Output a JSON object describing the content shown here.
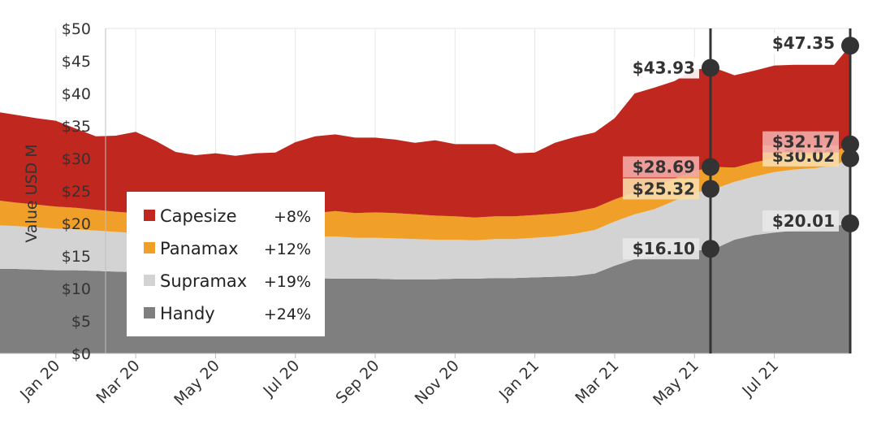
{
  "chart_data": {
    "type": "area",
    "stacked": true,
    "ylabel": "Value USD M",
    "ylim": [
      0,
      50
    ],
    "y_ticks": [
      "$0",
      "$5",
      "$10",
      "$15",
      "$20",
      "$25",
      "$30",
      "$35",
      "$40",
      "$45",
      "$50"
    ],
    "x_ticks": [
      {
        "label": "Jan 20",
        "t": 1
      },
      {
        "label": "Mar 20",
        "t": 3
      },
      {
        "label": "May 20",
        "t": 5
      },
      {
        "label": "Jul 20",
        "t": 7
      },
      {
        "label": "Sep 20",
        "t": 9
      },
      {
        "label": "Nov 20",
        "t": 11
      },
      {
        "label": "Jan 21",
        "t": 13
      },
      {
        "label": "Mar 21",
        "t": 15
      },
      {
        "label": "May 21",
        "t": 17
      },
      {
        "label": "Jul 21",
        "t": 19
      }
    ],
    "x_range": [
      -0.4,
      20.9
    ],
    "grid": "vertical",
    "x": [
      -0.4,
      0,
      0.5,
      1,
      1.5,
      2,
      2.5,
      3,
      3.5,
      4,
      4.5,
      5,
      5.5,
      6,
      6.5,
      7,
      7.5,
      8,
      8.5,
      9,
      9.5,
      10,
      10.5,
      11,
      11.5,
      12,
      12.5,
      13,
      13.5,
      14,
      14.5,
      15,
      15.5,
      16,
      16.5,
      17,
      17.5,
      18,
      18.5,
      19,
      19.5,
      20,
      20.5,
      20.9
    ],
    "series": [
      {
        "name": "Handy",
        "change": "+24%",
        "color": "#7f7f7f",
        "values": [
          13.0,
          13.0,
          12.9,
          12.8,
          12.8,
          12.7,
          12.6,
          12.5,
          12.4,
          12.2,
          12.0,
          11.9,
          11.8,
          11.8,
          11.7,
          11.6,
          11.6,
          11.5,
          11.5,
          11.5,
          11.4,
          11.4,
          11.4,
          11.5,
          11.5,
          11.6,
          11.6,
          11.7,
          11.8,
          11.9,
          12.3,
          13.5,
          14.5,
          15.0,
          15.5,
          15.8,
          16.1,
          17.5,
          18.2,
          18.6,
          18.9,
          19.2,
          19.6,
          20.01
        ]
      },
      {
        "name": "Supramax",
        "change": "+19%",
        "color": "#d3d3d3",
        "values": [
          6.7,
          6.6,
          6.5,
          6.4,
          6.3,
          6.2,
          6.1,
          6.0,
          6.0,
          5.9,
          5.9,
          5.9,
          6.0,
          6.1,
          6.1,
          6.2,
          6.4,
          6.5,
          6.3,
          6.3,
          6.3,
          6.2,
          6.1,
          6.0,
          5.9,
          6.0,
          6.0,
          6.1,
          6.2,
          6.5,
          6.7,
          6.8,
          6.9,
          7.2,
          8.0,
          8.9,
          9.22,
          8.9,
          9.0,
          9.3,
          9.4,
          9.3,
          9.3,
          10.01
        ]
      },
      {
        "name": "Panamax",
        "change": "+12%",
        "color": "#f0a028",
        "values": [
          3.8,
          3.6,
          3.5,
          3.4,
          3.3,
          3.2,
          3.1,
          3.1,
          3.1,
          3.1,
          3.1,
          3.1,
          3.2,
          3.3,
          3.3,
          3.4,
          3.6,
          3.9,
          3.8,
          3.9,
          3.9,
          3.8,
          3.7,
          3.6,
          3.5,
          3.5,
          3.5,
          3.5,
          3.5,
          3.4,
          3.4,
          3.4,
          3.4,
          3.4,
          3.4,
          3.4,
          3.37,
          2.2,
          2.2,
          2.1,
          2.1,
          2.1,
          2.1,
          2.15
        ]
      },
      {
        "name": "Capesize",
        "change": "+8%",
        "color": "#c0281f",
        "values": [
          13.6,
          13.5,
          13.3,
          13.2,
          12.2,
          11.3,
          11.7,
          12.5,
          11.2,
          9.8,
          9.5,
          9.9,
          9.4,
          9.6,
          9.8,
          11.3,
          11.8,
          11.8,
          11.6,
          11.5,
          11.3,
          11.0,
          11.6,
          11.1,
          11.3,
          11.1,
          9.7,
          9.6,
          10.9,
          11.5,
          11.6,
          12.5,
          15.2,
          15.3,
          15.0,
          15.6,
          15.24,
          14.2,
          14.1,
          14.3,
          14.0,
          13.8,
          13.4,
          15.18
        ]
      }
    ],
    "markers": [
      {
        "t": 17.4,
        "lines": [
          {
            "value": 16.1,
            "label": "$16.10",
            "box": "#e8e8e8"
          },
          {
            "value": 25.32,
            "label": "$25.32",
            "box": "#f9dca8"
          },
          {
            "value": 28.69,
            "label": "$28.69",
            "box": "#f2a9a5"
          },
          {
            "value": 43.93,
            "label": "$43.93",
            "box": "#ffffff"
          }
        ]
      },
      {
        "t": 20.9,
        "lines": [
          {
            "value": 20.01,
            "label": "$20.01",
            "box": "#e8e8e8"
          },
          {
            "value": 30.02,
            "label": "$30.02",
            "box": "#f9dca8"
          },
          {
            "value": 32.17,
            "label": "$32.17",
            "box": "#f2a9a5"
          },
          {
            "value": 47.35,
            "label": "$47.35",
            "box": "#ffffff"
          }
        ]
      }
    ],
    "legend": {
      "placement": "bottom-left",
      "order": [
        "Capesize",
        "Panamax",
        "Supramax",
        "Handy"
      ]
    }
  }
}
